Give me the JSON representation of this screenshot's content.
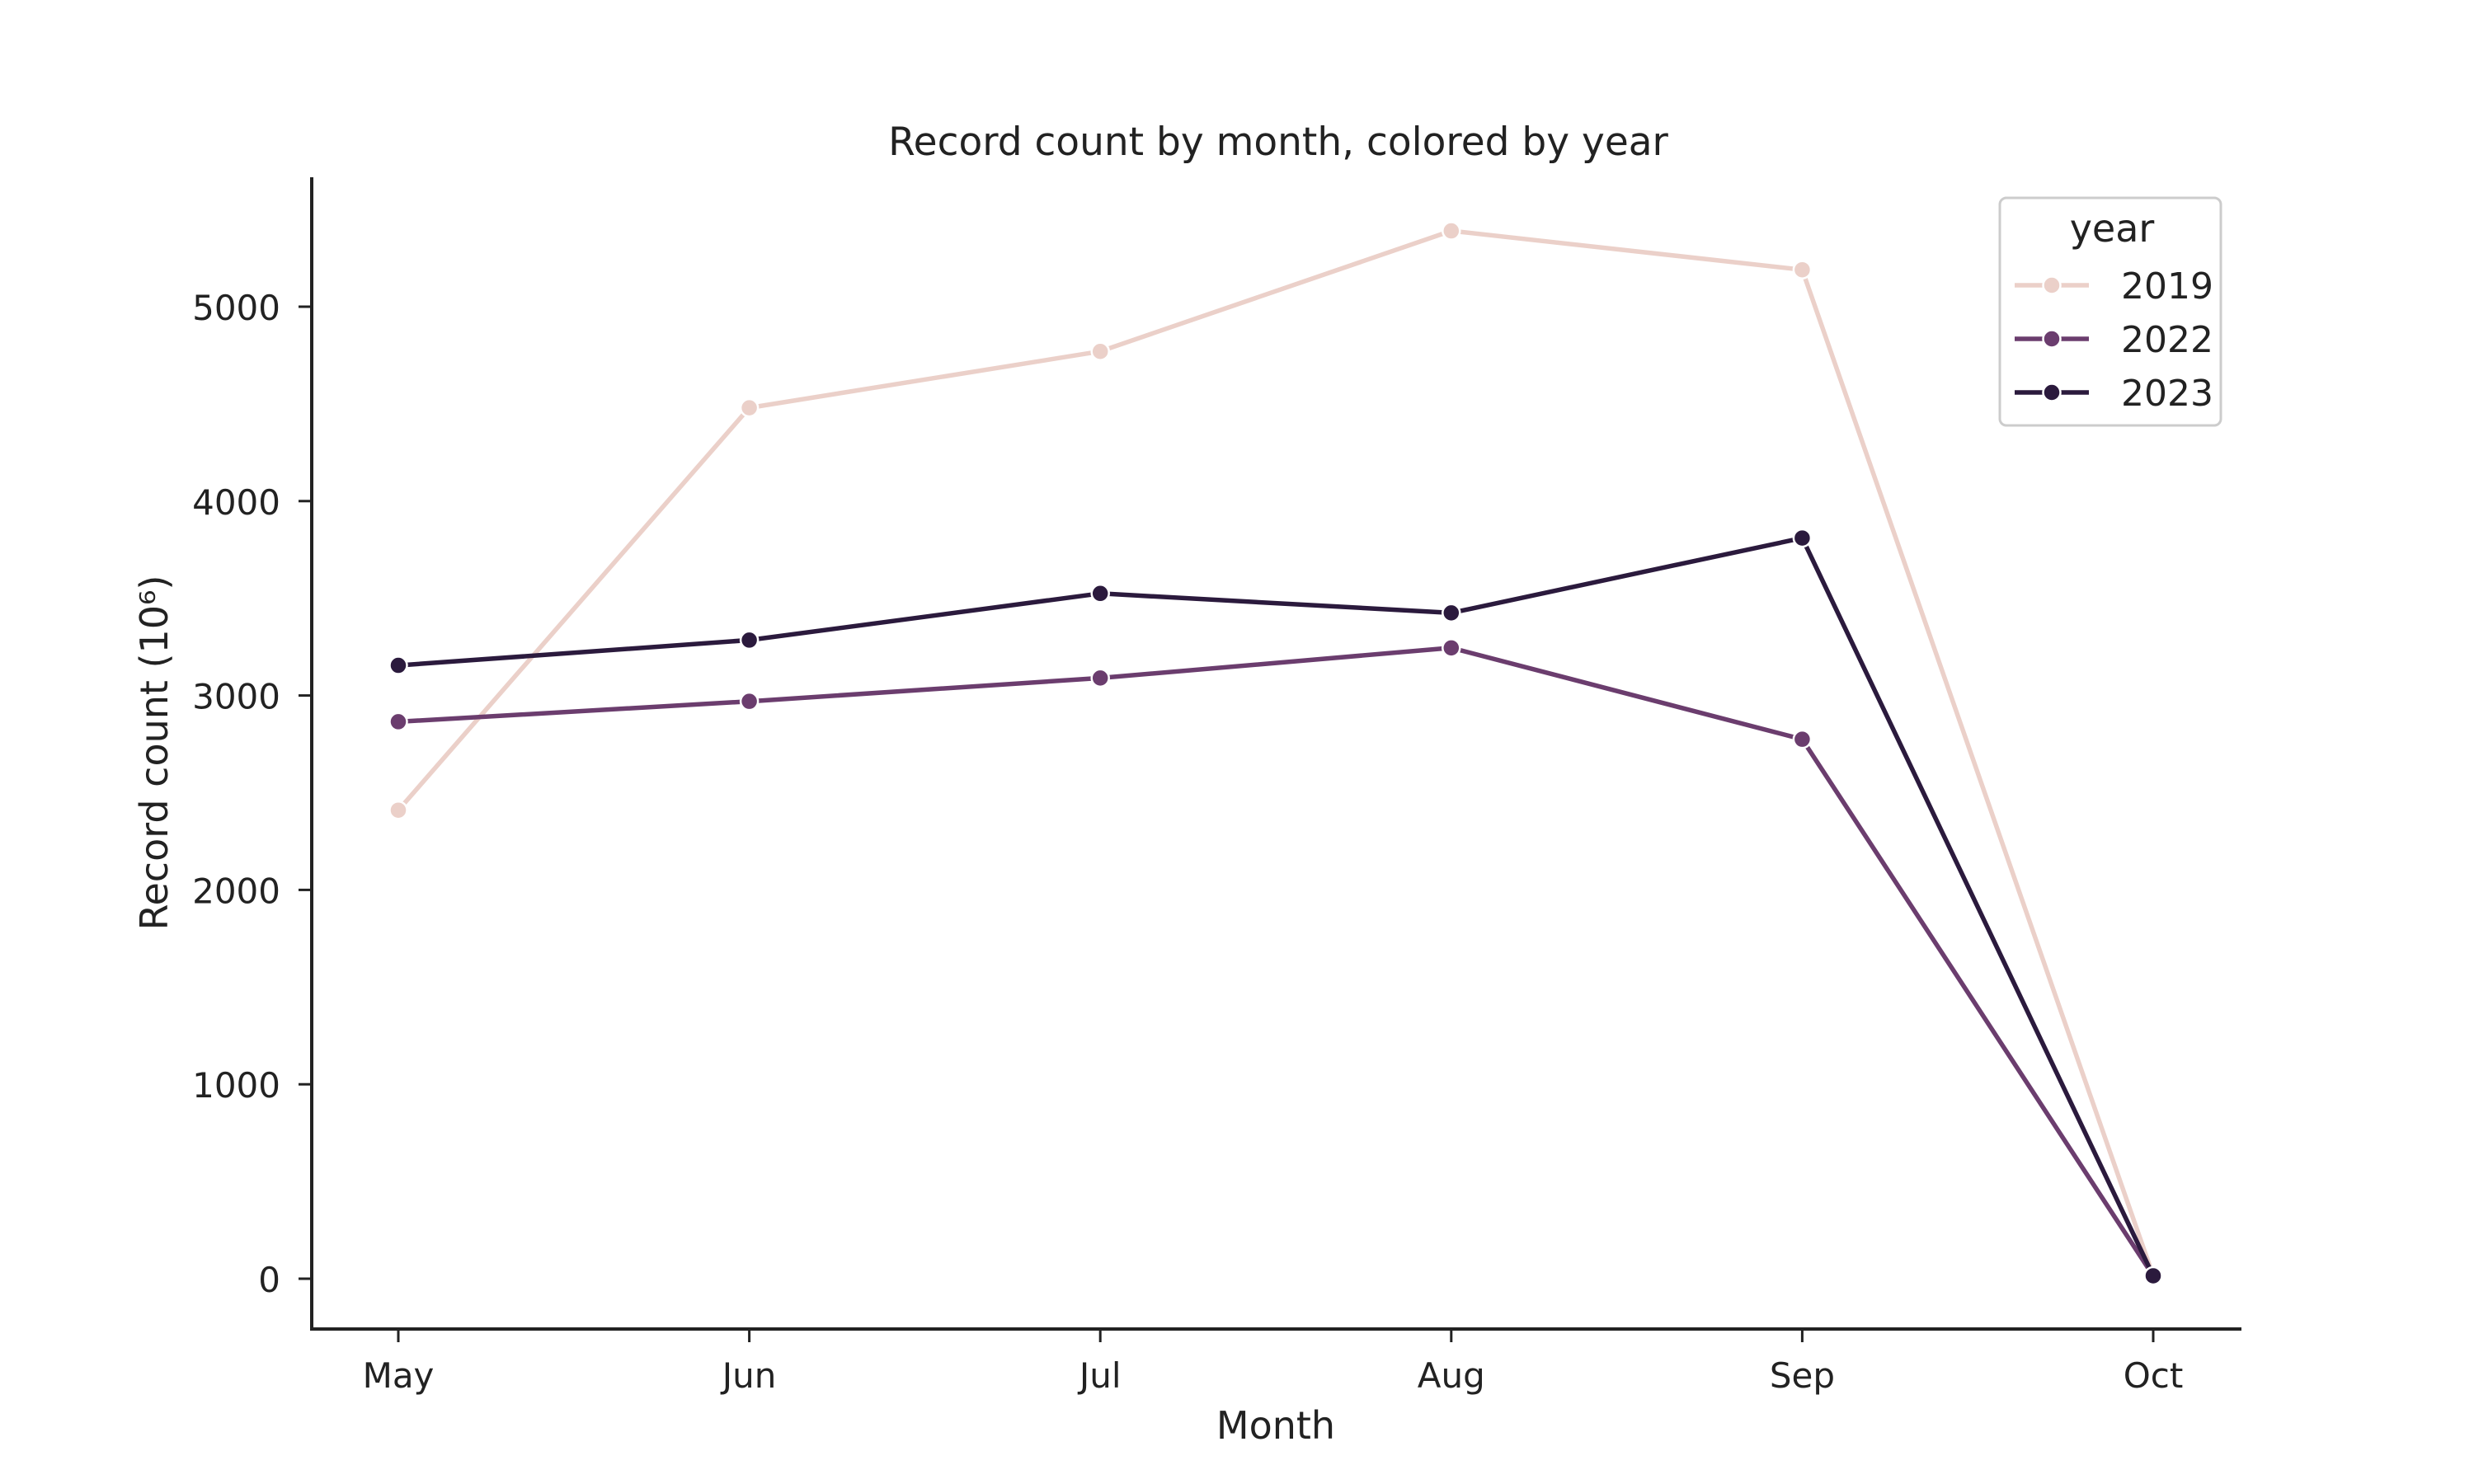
{
  "chart_data": {
    "type": "line",
    "title": "Record count by month, colored by year",
    "xlabel": "Month",
    "ylabel": "Record count (10⁶)",
    "categories": [
      "May",
      "Jun",
      "Jul",
      "Aug",
      "Sep",
      "Oct"
    ],
    "ylim": [
      -250,
      5650
    ],
    "yticks": [
      0,
      1000,
      2000,
      3000,
      4000,
      5000
    ],
    "grid": false,
    "legend": {
      "title": "year",
      "placement": "top-right"
    },
    "series": [
      {
        "name": "2019",
        "color": "#ebd0c9",
        "values": [
          2410,
          4480,
          4770,
          5390,
          5190,
          15
        ]
      },
      {
        "name": "2022",
        "color": "#6b3d6e",
        "values": [
          2865,
          2970,
          3090,
          3245,
          2775,
          15
        ]
      },
      {
        "name": "2023",
        "color": "#2b1a3d",
        "values": [
          3155,
          3285,
          3525,
          3425,
          3810,
          15
        ]
      }
    ]
  }
}
